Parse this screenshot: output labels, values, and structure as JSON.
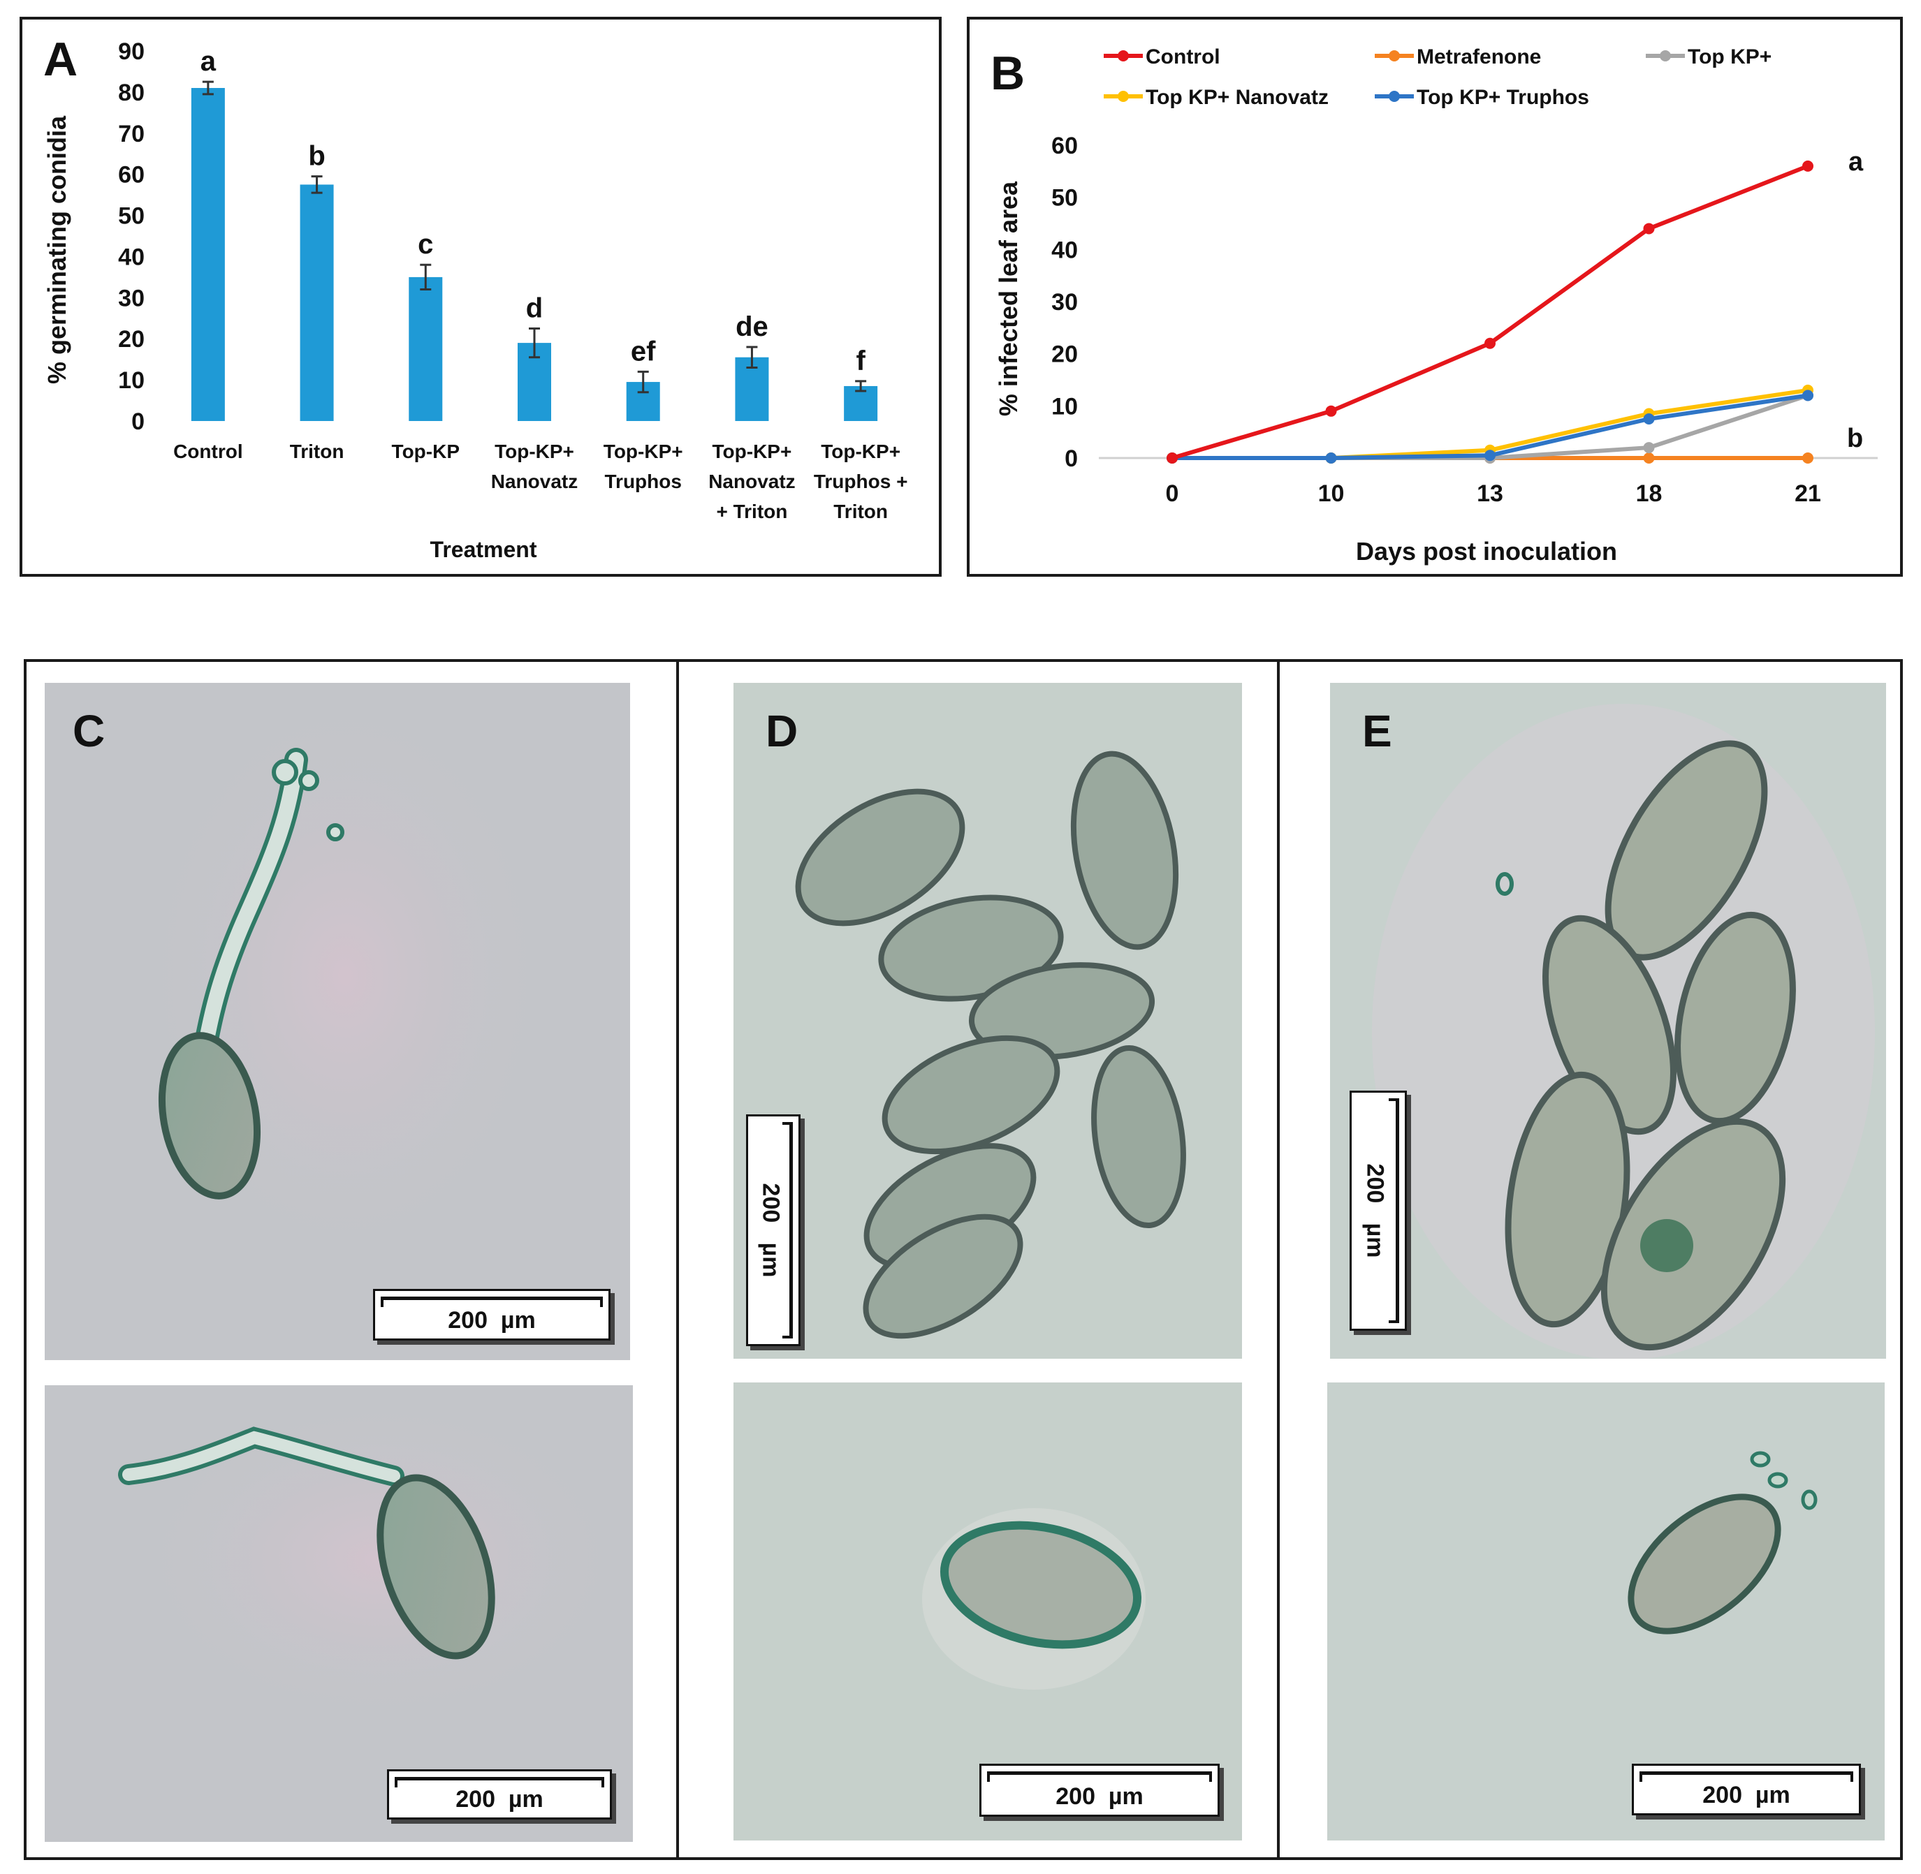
{
  "colors": {
    "bar": "#1f9ad6",
    "control": "#e5161b",
    "metrafenone": "#f58220",
    "topkp": "#a6a6a6",
    "nanovatz": "#ffc000",
    "truphos": "#2e75c6",
    "micro_bg": "#c2c8c6",
    "micro_bg_green": "#c7d2cc",
    "cell_stroke": "#2f7a66",
    "cell_fill": "#9aa89c"
  },
  "chart_data": [
    {
      "panel": "A",
      "type": "bar",
      "title": "A",
      "xlabel": "Treatment",
      "ylabel": "% germinating conidia",
      "ylim": [
        0,
        90
      ],
      "yticks": [
        "0",
        "10",
        "20",
        "30",
        "40",
        "50",
        "60",
        "70",
        "80",
        "90"
      ],
      "categories": [
        [
          "Control"
        ],
        [
          "Triton"
        ],
        [
          "Top-KP"
        ],
        [
          "Top-KP+",
          "Nanovatz"
        ],
        [
          "Top-KP+",
          "Truphos"
        ],
        [
          "Top-KP+",
          "Nanovatz",
          "+ Triton"
        ],
        [
          "Top-KP+",
          "Truphos +",
          "Triton"
        ]
      ],
      "values": [
        81,
        57.5,
        35,
        19,
        9.5,
        15.5,
        8.5
      ],
      "errors": [
        1.5,
        2,
        3,
        3.5,
        2.5,
        2.5,
        1.2
      ],
      "letters": [
        "a",
        "b",
        "c",
        "d",
        "ef",
        "de",
        "f"
      ]
    },
    {
      "panel": "B",
      "type": "line",
      "title": "B",
      "xlabel": "Days post inoculation",
      "ylabel": "% infected leaf area",
      "x": [
        "0",
        "10",
        "13",
        "18",
        "21"
      ],
      "ylim": [
        0,
        60
      ],
      "yticks": [
        "0",
        "10",
        "20",
        "30",
        "40",
        "50",
        "60"
      ],
      "legend_position": "top",
      "series": [
        {
          "name": "Control",
          "color_key": "control",
          "values": [
            0,
            9,
            22,
            44,
            56
          ]
        },
        {
          "name": "Metrafenone",
          "color_key": "metrafenone",
          "values": [
            0,
            0,
            0,
            0,
            0
          ]
        },
        {
          "name": "Top KP+",
          "color_key": "topkp",
          "values": [
            0,
            0,
            0,
            2,
            12
          ]
        },
        {
          "name": "Top KP+ Nanovatz",
          "color_key": "nanovatz",
          "values": [
            0,
            0,
            1.5,
            8.5,
            13
          ]
        },
        {
          "name": "Top KP+  Truphos",
          "color_key": "truphos",
          "values": [
            0,
            0,
            0.5,
            7.5,
            12
          ]
        }
      ],
      "annotations": [
        {
          "text": "a",
          "series": "Control"
        },
        {
          "text": "b",
          "series": "Top KP+"
        }
      ]
    }
  ],
  "micrographs": {
    "C": {
      "label": "C",
      "scale_top": {
        "value": "200",
        "unit": "µm"
      },
      "scale_bottom": {
        "value": "200",
        "unit": "µm"
      }
    },
    "D": {
      "label": "D",
      "scale_top": {
        "value": "200",
        "unit": "µm"
      },
      "scale_bottom": {
        "value": "200",
        "unit": "µm"
      }
    },
    "E": {
      "label": "E",
      "scale_top": {
        "value": "200",
        "unit": "µm"
      },
      "scale_bottom": {
        "value": "200",
        "unit": "µm"
      }
    }
  }
}
